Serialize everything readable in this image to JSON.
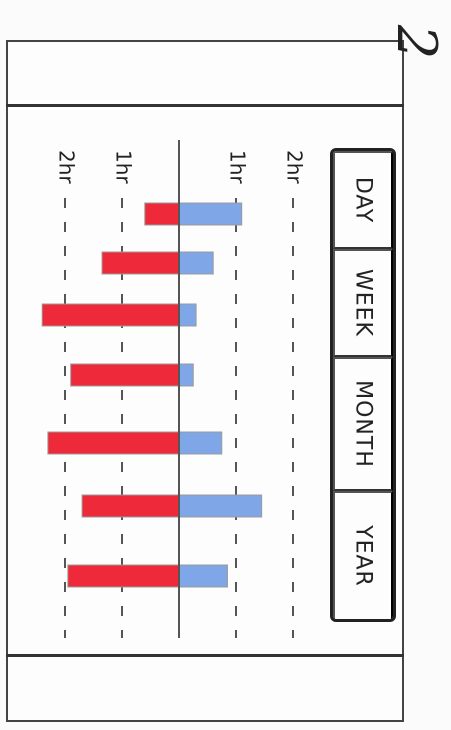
{
  "page_number": "2",
  "tabs": [
    {
      "label": "DAY"
    },
    {
      "label": "WEEK"
    },
    {
      "label": "MONTH"
    },
    {
      "label": "YEAR"
    }
  ],
  "colors": {
    "positive": "#7fa6e6",
    "negative": "#ee2a3a",
    "axis": "#555555",
    "gridline": "#555555"
  },
  "chart_data": {
    "type": "bar",
    "orientation": "horizontal-diverging",
    "title": "",
    "xlabel": "",
    "ylabel": "",
    "tick_labels": [
      "2hr",
      "1hr",
      "1hr",
      "2hr"
    ],
    "tick_values": [
      -2,
      -1,
      1,
      2
    ],
    "xlim": [
      -2.6,
      2.2
    ],
    "grid": true,
    "series": [
      {
        "values": [
          1.1,
          0.6,
          0.3,
          0.25,
          0.75,
          1.45,
          0.85
        ]
      },
      {
        "values": [
          -0.6,
          -1.35,
          -2.4,
          -1.9,
          -2.3,
          -1.7,
          -1.95
        ]
      }
    ]
  }
}
